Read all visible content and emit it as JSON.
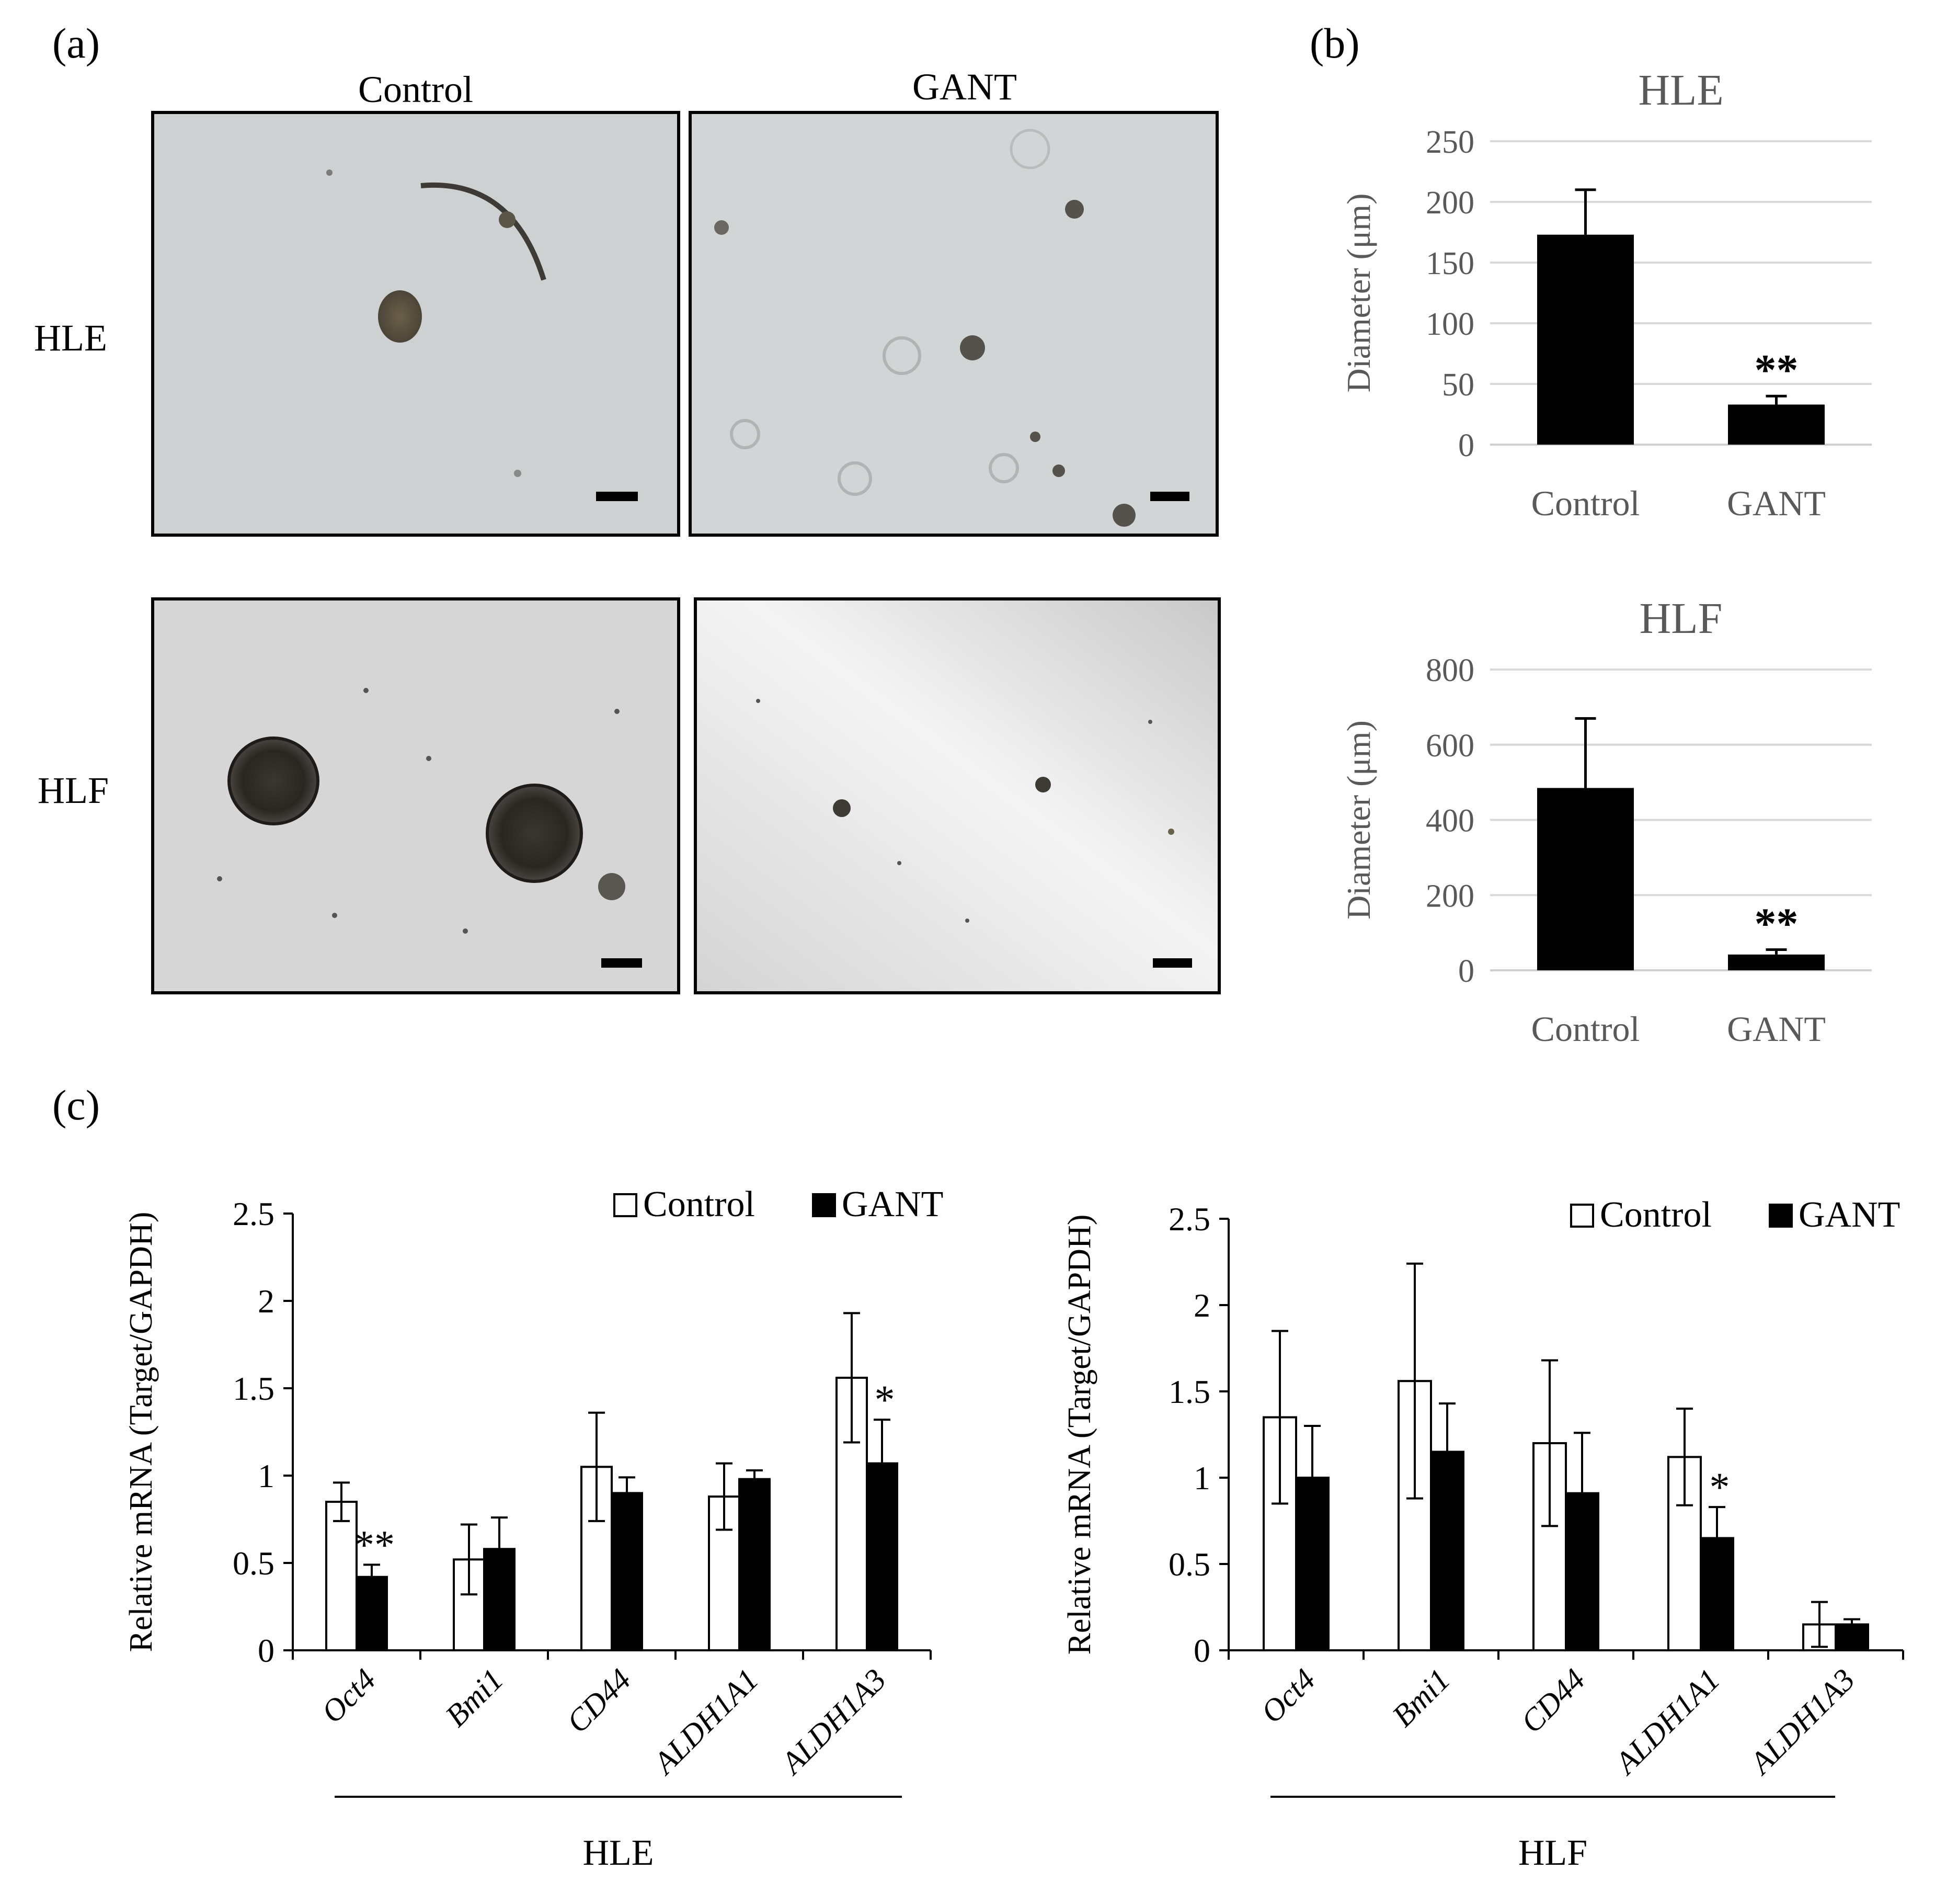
{
  "panels": {
    "a": {
      "label": "(a)",
      "col_labels": [
        "Control",
        "GANT"
      ],
      "row_labels": [
        "HLE",
        "HLF"
      ]
    },
    "b": {
      "label": "(b)"
    },
    "c": {
      "label": "(c)"
    }
  },
  "colors": {
    "gray_text": "#595959",
    "bar_filled": "#000000",
    "bar_open": "#ffffff",
    "grid": "#d9d9d9",
    "photo_hle": "#cfd3d3",
    "photo_hlf": "#dcdcdc"
  },
  "chart_data": [
    {
      "id": "b-hle",
      "type": "bar",
      "title": "HLE",
      "ylabel": "Diameter (μm)",
      "categories": [
        "Control",
        "GANT"
      ],
      "values": [
        173,
        33
      ],
      "errors": [
        37,
        7
      ],
      "significance": [
        "",
        "**"
      ],
      "ylim": [
        0,
        250
      ],
      "yticks": [
        0,
        50,
        100,
        150,
        200,
        250
      ],
      "grid": true
    },
    {
      "id": "b-hlf",
      "type": "bar",
      "title": "HLF",
      "ylabel": "Diameter (μm)",
      "categories": [
        "Control",
        "GANT"
      ],
      "values": [
        485,
        42
      ],
      "errors": [
        185,
        13
      ],
      "significance": [
        "",
        "**"
      ],
      "ylim": [
        0,
        800
      ],
      "yticks": [
        0,
        200,
        400,
        600,
        800
      ],
      "grid": true
    },
    {
      "id": "c-hle",
      "type": "bar",
      "ylabel": "Relative mRNA (Target/GAPDH)",
      "xlabel": "HLE",
      "categories": [
        "Oct4",
        "Bmi1",
        "CD44",
        "ALDH1A1",
        "ALDH1A3"
      ],
      "ylim": [
        0,
        2.5
      ],
      "yticks": [
        0,
        0.5,
        1,
        1.5,
        2,
        2.5
      ],
      "ytick_labels": [
        "0",
        "0.5",
        "1",
        "1.5",
        "2",
        "2.5"
      ],
      "legend": "top-right",
      "grid": false,
      "series": [
        {
          "name": "Control",
          "values": [
            0.85,
            0.52,
            1.05,
            0.88,
            1.56
          ],
          "errors": [
            0.11,
            0.2,
            0.31,
            0.19,
            0.37
          ],
          "significance": [
            "",
            "",
            "",
            "",
            ""
          ]
        },
        {
          "name": "GANT",
          "values": [
            0.42,
            0.58,
            0.9,
            0.98,
            1.07
          ],
          "errors": [
            0.07,
            0.18,
            0.09,
            0.05,
            0.25
          ],
          "significance": [
            "**",
            "",
            "",
            "",
            "*"
          ]
        }
      ]
    },
    {
      "id": "c-hlf",
      "type": "bar",
      "ylabel": "Relative mRNA (Target/GAPDH)",
      "xlabel": "HLF",
      "categories": [
        "Oct4",
        "Bmi1",
        "CD44",
        "ALDH1A1",
        "ALDH1A3"
      ],
      "ylim": [
        0,
        2.5
      ],
      "yticks": [
        0,
        0.5,
        1,
        1.5,
        2,
        2.5
      ],
      "ytick_labels": [
        "0",
        "0.5",
        "1",
        "1.5",
        "2",
        "2.5"
      ],
      "legend": "top-right",
      "grid": false,
      "series": [
        {
          "name": "Control",
          "values": [
            1.35,
            1.56,
            1.2,
            1.12,
            0.15
          ],
          "errors": [
            0.5,
            0.68,
            0.48,
            0.28,
            0.13
          ],
          "significance": [
            "",
            "",
            "",
            "",
            ""
          ]
        },
        {
          "name": "GANT",
          "values": [
            1.0,
            1.15,
            0.91,
            0.65,
            0.15
          ],
          "errors": [
            0.3,
            0.28,
            0.35,
            0.18,
            0.03
          ],
          "significance": [
            "",
            "",
            "",
            "*",
            ""
          ]
        }
      ]
    }
  ]
}
